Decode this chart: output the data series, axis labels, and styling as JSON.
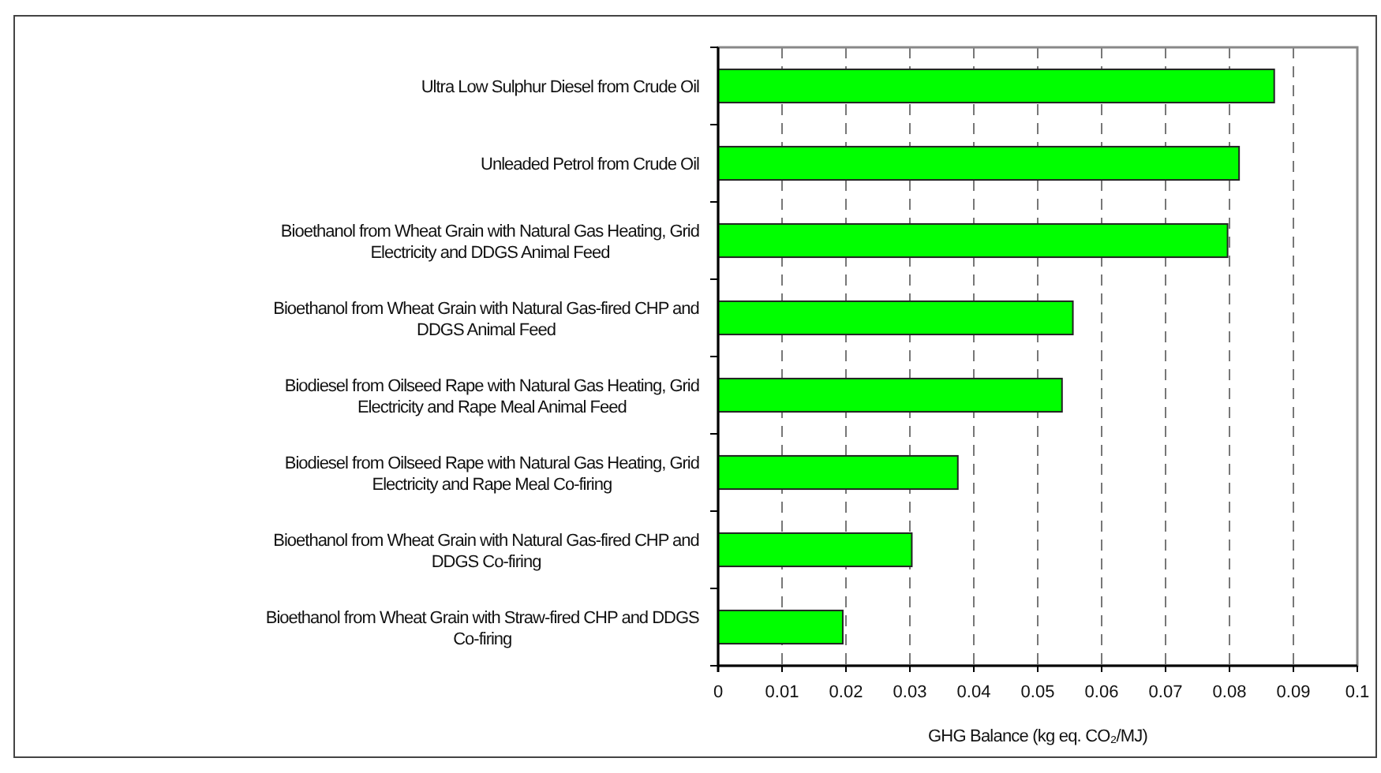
{
  "chart_data": {
    "type": "bar",
    "orientation": "horizontal",
    "xlabel": "GHG Balance (kg eq. CO₂/MJ)",
    "categories": [
      "Ultra Low Sulphur Diesel from Crude Oil",
      "Unleaded Petrol from Crude Oil",
      "Bioethanol from Wheat Grain with Natural Gas Heating, Grid Electricity and DDGS Animal Feed",
      "Bioethanol from Wheat Grain with Natural Gas-fired CHP and DDGS Animal Feed",
      "Biodiesel from Oilseed Rape with Natural Gas Heating, Grid Electricity and Rape Meal Animal Feed",
      "Biodiesel from Oilseed Rape with Natural Gas Heating, Grid Electricity and Rape Meal Co-firing",
      "Bioethanol from Wheat Grain with Natural Gas-fired CHP and DDGS Co-firing",
      "Bioethanol from Wheat Grain with Straw-fired CHP and DDGS Co-firing"
    ],
    "values": [
      0.087,
      0.0815,
      0.0797,
      0.0555,
      0.0538,
      0.0375,
      0.0303,
      0.0195
    ],
    "color": "#00ff00",
    "xlim": [
      0,
      0.1
    ],
    "xticks": [
      0,
      0.01,
      0.02,
      0.03,
      0.04,
      0.05,
      0.06,
      0.07,
      0.08,
      0.09,
      0.1
    ],
    "grid": "x"
  }
}
